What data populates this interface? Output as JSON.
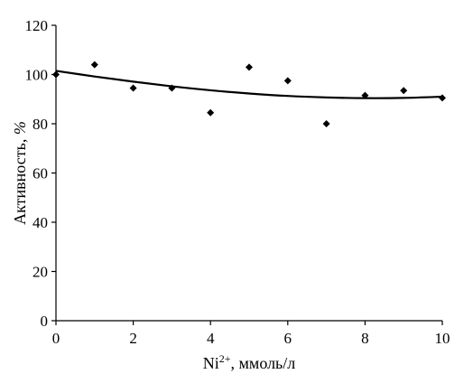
{
  "chart_data": {
    "type": "scatter",
    "xlabel": {
      "base": "Ni",
      "sup": "2+",
      "rest": ", ммоль/л"
    },
    "ylabel": {
      "main": "Активность, ",
      "unit": "%"
    },
    "xlim": [
      0,
      10
    ],
    "ylim": [
      0,
      120
    ],
    "x_ticks": [
      0,
      2,
      4,
      6,
      8,
      10
    ],
    "y_ticks": [
      0,
      20,
      40,
      60,
      80,
      100,
      120
    ],
    "grid": false,
    "series": [
      {
        "type": "scatter",
        "marker": "diamond",
        "color": "#000000",
        "points": [
          {
            "x": 0,
            "y": 100
          },
          {
            "x": 1,
            "y": 104
          },
          {
            "x": 2,
            "y": 94.5
          },
          {
            "x": 3,
            "y": 94.5
          },
          {
            "x": 4,
            "y": 84.5
          },
          {
            "x": 5,
            "y": 103
          },
          {
            "x": 6,
            "y": 97.5
          },
          {
            "x": 7,
            "y": 80
          },
          {
            "x": 8,
            "y": 91.5
          },
          {
            "x": 9,
            "y": 93.5
          },
          {
            "x": 10,
            "y": 90.5
          }
        ]
      },
      {
        "type": "line",
        "style": "trendline",
        "color": "#000000",
        "points": [
          {
            "x": 0,
            "y": 101.5
          },
          {
            "x": 1,
            "y": 99.2
          },
          {
            "x": 2,
            "y": 97.1
          },
          {
            "x": 3,
            "y": 95.2
          },
          {
            "x": 4,
            "y": 93.6
          },
          {
            "x": 5,
            "y": 92.3
          },
          {
            "x": 6,
            "y": 91.3
          },
          {
            "x": 7,
            "y": 90.7
          },
          {
            "x": 8,
            "y": 90.4
          },
          {
            "x": 9,
            "y": 90.5
          },
          {
            "x": 10,
            "y": 91.0
          }
        ]
      }
    ]
  }
}
